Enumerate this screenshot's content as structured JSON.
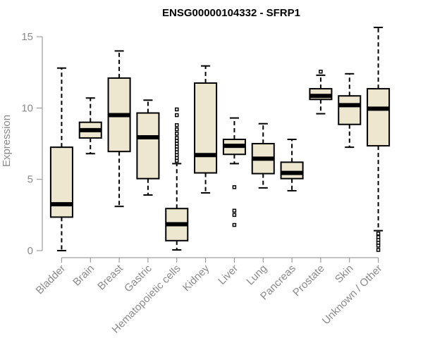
{
  "chart_data": {
    "type": "boxplot",
    "title": "ENSG00000104332 - SFRP1",
    "xlabel": "",
    "ylabel": "Expression",
    "ylim": [
      0,
      15.5
    ],
    "yticks": [
      0,
      5,
      10,
      15
    ],
    "box_fill": "#ede7cf",
    "categories": [
      "Bladder",
      "Brain",
      "Breast",
      "Gastric",
      "Hematopoietic cells",
      "Kidney",
      "Liver",
      "Lung",
      "Pancreas",
      "Prostate",
      "Skin",
      "Unknown / Other"
    ],
    "series": [
      {
        "name": "Bladder",
        "whisker_low": 0.0,
        "q1": 2.35,
        "median": 3.25,
        "q3": 7.25,
        "whisker_high": 12.8,
        "outliers": []
      },
      {
        "name": "Brain",
        "whisker_low": 6.8,
        "q1": 7.9,
        "median": 8.45,
        "q3": 9.0,
        "whisker_high": 10.7,
        "outliers": []
      },
      {
        "name": "Breast",
        "whisker_low": 3.1,
        "q1": 6.95,
        "median": 9.5,
        "q3": 12.1,
        "whisker_high": 14.0,
        "outliers": []
      },
      {
        "name": "Gastric",
        "whisker_low": 3.9,
        "q1": 5.05,
        "median": 7.95,
        "q3": 9.65,
        "whisker_high": 10.55,
        "outliers": []
      },
      {
        "name": "Hematopoietic cells",
        "whisker_low": 0.05,
        "q1": 0.7,
        "median": 1.85,
        "q3": 2.95,
        "whisker_high": 6.1,
        "outliers": [
          6.3,
          6.5,
          6.7,
          6.9,
          7.1,
          7.3,
          7.5,
          7.7,
          7.9,
          8.2,
          8.5,
          8.8,
          9.5,
          9.9
        ]
      },
      {
        "name": "Kidney",
        "whisker_low": 4.05,
        "q1": 5.45,
        "median": 6.7,
        "q3": 11.75,
        "whisker_high": 12.95,
        "outliers": []
      },
      {
        "name": "Liver",
        "whisker_low": 6.1,
        "q1": 6.75,
        "median": 7.35,
        "q3": 7.8,
        "whisker_high": 9.3,
        "outliers": [
          4.45,
          2.8,
          2.5,
          1.8
        ]
      },
      {
        "name": "Lung",
        "whisker_low": 4.4,
        "q1": 5.4,
        "median": 6.45,
        "q3": 7.5,
        "whisker_high": 8.9,
        "outliers": []
      },
      {
        "name": "Pancreas",
        "whisker_low": 4.2,
        "q1": 5.05,
        "median": 5.45,
        "q3": 6.2,
        "whisker_high": 7.8,
        "outliers": []
      },
      {
        "name": "Prostate",
        "whisker_low": 9.6,
        "q1": 10.6,
        "median": 10.85,
        "q3": 11.35,
        "whisker_high": 12.3,
        "outliers": [
          12.55
        ]
      },
      {
        "name": "Skin",
        "whisker_low": 7.25,
        "q1": 8.85,
        "median": 10.2,
        "q3": 10.85,
        "whisker_high": 12.4,
        "outliers": []
      },
      {
        "name": "Unknown / Other",
        "whisker_low": 1.4,
        "q1": 7.35,
        "median": 9.95,
        "q3": 11.35,
        "whisker_high": 15.65,
        "outliers": [
          1.2,
          0.95,
          0.75,
          0.55,
          0.35,
          0.05
        ]
      }
    ]
  }
}
